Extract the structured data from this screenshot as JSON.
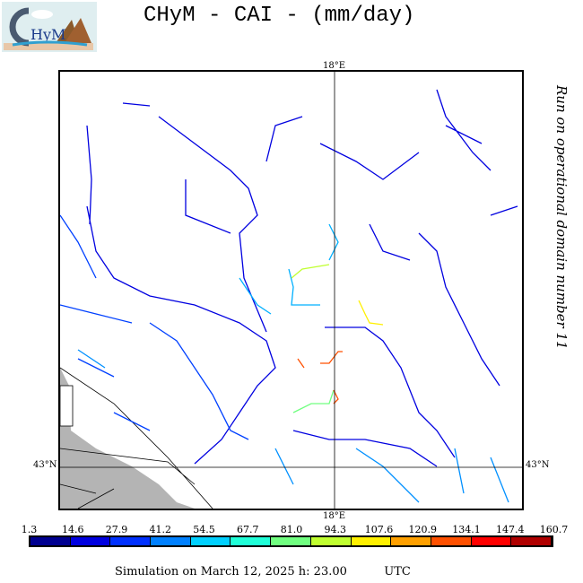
{
  "title": "CHyM - CAI - (mm/day)",
  "logo_text": "CHyM",
  "side_text": "Run on operational domain number 11",
  "map": {
    "lon_label": "18°E",
    "lat_label": "43°N"
  },
  "colorbar": {
    "ticks": [
      "1.3",
      "14.6",
      "27.9",
      "41.2",
      "54.5",
      "67.7",
      "81.0",
      "94.3",
      "107.6",
      "120.9",
      "134.1",
      "147.4",
      "160.7"
    ],
    "colors": [
      "#000090",
      "#0000e0",
      "#0030ff",
      "#0080ff",
      "#00d0ff",
      "#20ffd8",
      "#70ff80",
      "#c0ff30",
      "#fff000",
      "#ffa000",
      "#ff5000",
      "#ff0000",
      "#b00000"
    ]
  },
  "footer": {
    "simulation": "Simulation on March 12, 2025 h: 23.00",
    "tz": "UTC"
  }
}
